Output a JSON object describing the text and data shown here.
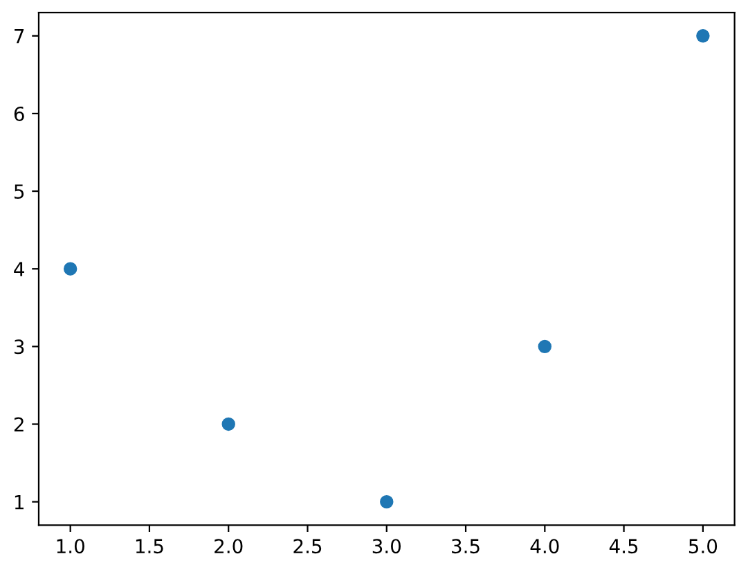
{
  "chart_data": {
    "type": "scatter",
    "x": [
      1,
      2,
      3,
      4,
      5
    ],
    "series": [
      {
        "color": "#1f77b4",
        "values": [
          4,
          2,
          1,
          3,
          7
        ]
      }
    ],
    "marker": "circle",
    "xlim": [
      0.8,
      5.2
    ],
    "xticks": [
      {
        "value": 1,
        "label": "1.0"
      },
      {
        "value": 1.5,
        "label": "1.5"
      },
      {
        "value": 2,
        "label": "2.0"
      },
      {
        "value": 2.5,
        "label": "2.5"
      },
      {
        "value": 3,
        "label": "3.0"
      },
      {
        "value": 3.5,
        "label": "3.5"
      },
      {
        "value": 4,
        "label": "4.0"
      },
      {
        "value": 4.5,
        "label": "4.5"
      },
      {
        "value": 5,
        "label": "5.0"
      }
    ],
    "ylim": [
      0.7,
      7.3
    ],
    "yticks": [
      1,
      2,
      3,
      4,
      5,
      6,
      7
    ]
  }
}
